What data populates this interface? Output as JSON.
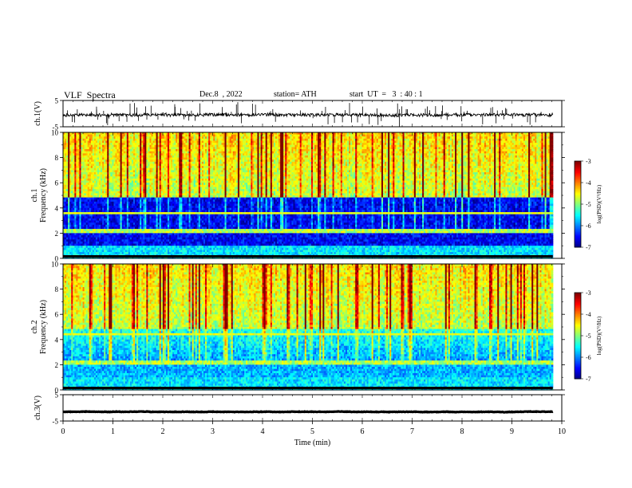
{
  "header": {
    "title": "VLF  Spectra",
    "date": "Dec.8  , 2022",
    "station": "station= ATH",
    "start": "start  UT  =   3  : 40 : 1"
  },
  "chart_data": [
    {
      "type": "line",
      "panel": "ch1-waveform",
      "ylabel": "ch.1(V)",
      "ylim": [
        -5,
        5
      ],
      "yticks": [
        "5",
        "-5"
      ],
      "series": [
        {
          "baseline": -0.5,
          "noise": 1.2,
          "spikes": 120
        }
      ]
    },
    {
      "type": "heatmap",
      "panel": "ch1-spectrogram",
      "ylabel_channel": "ch.1",
      "ylabel": "Frequency  (kHz)",
      "ylim": [
        0,
        10
      ],
      "yticks": [
        "10",
        "8",
        "6",
        "4",
        "2",
        "0"
      ],
      "colorbar": {
        "label": "log(PSD)(V²/Hz)",
        "ticks": [
          "-3",
          "-4",
          "-5",
          "-6",
          "-7"
        ],
        "range": [
          -7,
          -3
        ]
      }
    },
    {
      "type": "heatmap",
      "panel": "ch2-spectrogram",
      "ylabel_channel": "ch.2",
      "ylabel": "Frequency  (kHz)",
      "ylim": [
        0,
        10
      ],
      "yticks": [
        "10",
        "8",
        "6",
        "4",
        "2",
        "0"
      ],
      "colorbar": {
        "label": "log(PSD)(V²/Hz)",
        "ticks": [
          "-3",
          "-4",
          "-5",
          "-6",
          "-7"
        ],
        "range": [
          -7,
          -3
        ]
      }
    },
    {
      "type": "line",
      "panel": "ch3-waveform",
      "ylabel": "ch.3(V)",
      "ylim": [
        -5,
        5
      ],
      "yticks": [
        "5",
        "-5"
      ],
      "series": [
        {
          "baseline": -1.5,
          "noise": 0.15,
          "spikes": 0
        }
      ]
    }
  ],
  "xaxis": {
    "label": "Time  (min)",
    "ticks": [
      "0",
      "1",
      "2",
      "3",
      "4",
      "5",
      "6",
      "7",
      "8",
      "9",
      "10"
    ],
    "xlim": [
      0,
      10
    ],
    "data_end": 9.82
  }
}
